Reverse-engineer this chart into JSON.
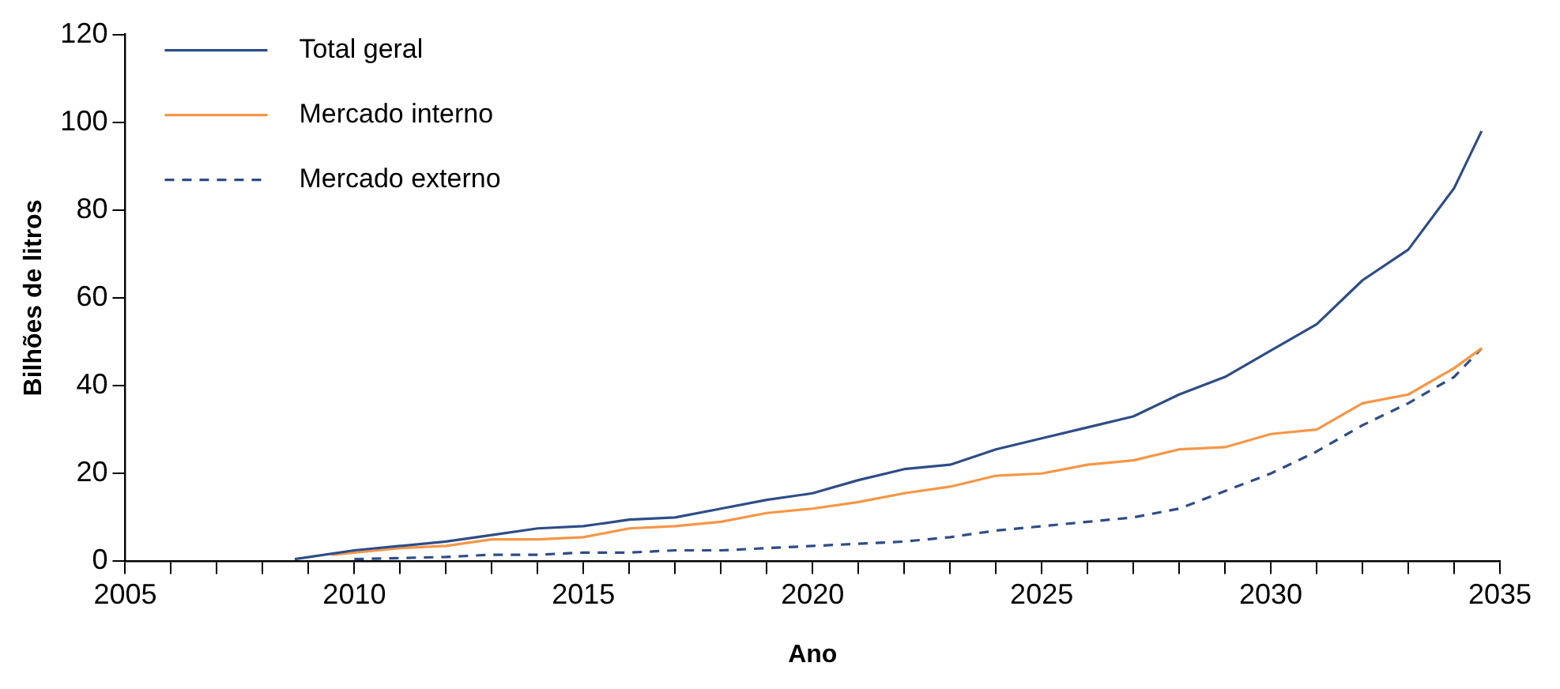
{
  "chart_data": {
    "type": "line",
    "xlabel": "Ano",
    "ylabel": "Bilhões de litros",
    "xlim": [
      2005,
      2035
    ],
    "ylim": [
      0,
      120
    ],
    "xticks": [
      2005,
      {
        "value": 2006,
        "label": null
      },
      {
        "value": 2007,
        "label": null
      },
      {
        "value": 2008,
        "label": null
      },
      {
        "value": 2009,
        "label": null
      },
      2010,
      {
        "value": 2011,
        "label": null
      },
      {
        "value": 2012,
        "label": null
      },
      {
        "value": 2013,
        "label": null
      },
      {
        "value": 2014,
        "label": null
      },
      2015,
      {
        "value": 2016,
        "label": null
      },
      {
        "value": 2017,
        "label": null
      },
      {
        "value": 2018,
        "label": null
      },
      {
        "value": 2019,
        "label": null
      },
      2020,
      {
        "value": 2021,
        "label": null
      },
      {
        "value": 2022,
        "label": null
      },
      {
        "value": 2023,
        "label": null
      },
      {
        "value": 2024,
        "label": null
      },
      2025,
      {
        "value": 2026,
        "label": null
      },
      {
        "value": 2027,
        "label": null
      },
      {
        "value": 2028,
        "label": null
      },
      {
        "value": 2029,
        "label": null
      },
      2030,
      {
        "value": 2031,
        "label": null
      },
      {
        "value": 2032,
        "label": null
      },
      {
        "value": 2033,
        "label": null
      },
      {
        "value": 2034,
        "label": null
      },
      2035
    ],
    "yticks": [
      0,
      20,
      40,
      60,
      80,
      100,
      120
    ],
    "grid": false,
    "legend": "top left",
    "marker": "none",
    "series": [
      {
        "name": "Total geral",
        "color": "#2e4d87",
        "line_style": "solid",
        "x": [
          2008.7,
          2010,
          2011,
          2012,
          2013,
          2014,
          2015,
          2016,
          2017,
          2018,
          2019,
          2020,
          2021,
          2022,
          2023,
          2024,
          2025,
          2026,
          2027,
          2028,
          2029,
          2030,
          2031,
          2032,
          2033,
          2034,
          2034.6
        ],
        "values": [
          0.5,
          2.5,
          3.5,
          4.5,
          6,
          7.5,
          8,
          9.5,
          10,
          12,
          14,
          15.5,
          18.5,
          21,
          22,
          25.5,
          28,
          30.5,
          33,
          38,
          42,
          48,
          54,
          64,
          71,
          85,
          98
        ]
      },
      {
        "name": "Mercado interno",
        "color": "#f79646",
        "line_style": "solid",
        "x": [
          2009.5,
          2010,
          2011,
          2012,
          2013,
          2014,
          2015,
          2016,
          2017,
          2018,
          2019,
          2020,
          2021,
          2022,
          2023,
          2024,
          2025,
          2026,
          2027,
          2028,
          2029,
          2030,
          2031,
          2032,
          2033,
          2034,
          2034.6
        ],
        "values": [
          1.5,
          2,
          3,
          3.5,
          5,
          5,
          5.5,
          7.5,
          8,
          9,
          11,
          12,
          13.5,
          15.5,
          17,
          19.5,
          20,
          22,
          23,
          25.5,
          26,
          29,
          30,
          36,
          38,
          44,
          48.5
        ]
      },
      {
        "name": "Mercado externo",
        "color": "#2e4d87",
        "line_style": "dashed",
        "x": [
          2010,
          2012,
          2013,
          2014,
          2015,
          2016,
          2017,
          2018,
          2019,
          2020,
          2021,
          2022,
          2023,
          2024,
          2025,
          2026,
          2027,
          2028,
          2029,
          2030,
          2031,
          2032,
          2033,
          2034,
          2034.6
        ],
        "values": [
          0.5,
          1,
          1.5,
          1.5,
          2,
          2,
          2.5,
          2.5,
          3,
          3.5,
          4,
          4.5,
          5.5,
          7,
          8,
          9,
          10,
          12,
          16,
          20,
          25,
          31,
          36,
          42,
          48.5
        ]
      }
    ]
  }
}
